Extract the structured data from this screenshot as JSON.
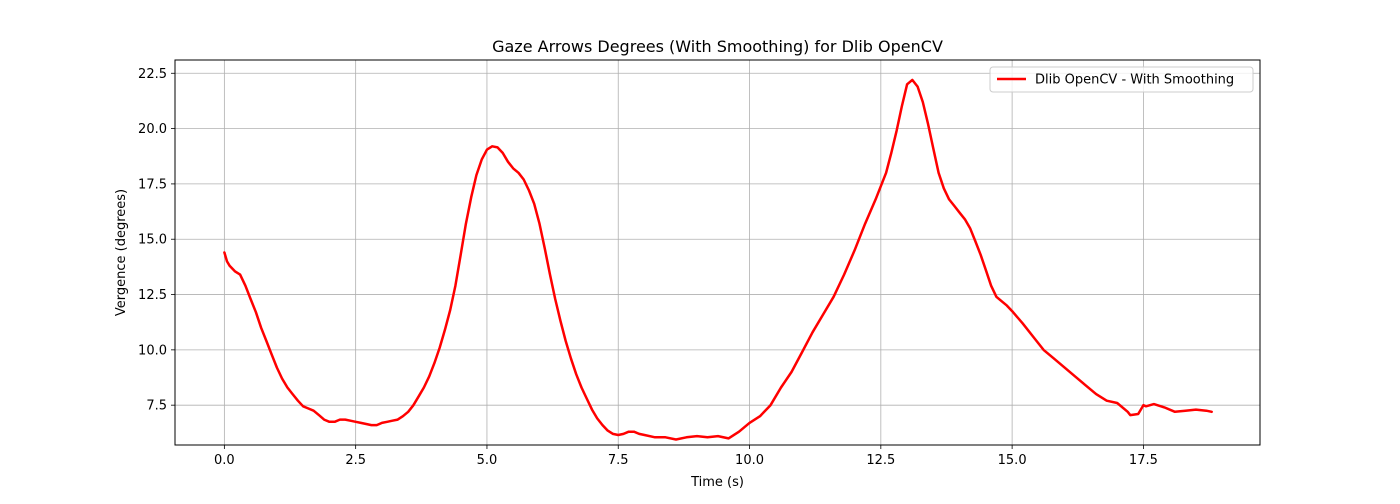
{
  "chart_data": {
    "type": "line",
    "title": "Gaze Arrows Degrees (With Smoothing) for Dlib OpenCV",
    "xlabel": "Time (s)",
    "ylabel": "Vergence (degrees)",
    "xlim": [
      -0.94,
      19.72
    ],
    "ylim": [
      5.7,
      23.1
    ],
    "x_ticks": [
      0.0,
      2.5,
      5.0,
      7.5,
      10.0,
      12.5,
      15.0,
      17.5
    ],
    "x_tick_labels": [
      "0.0",
      "2.5",
      "5.0",
      "7.5",
      "10.0",
      "12.5",
      "15.0",
      "17.5"
    ],
    "y_ticks": [
      7.5,
      10.0,
      12.5,
      15.0,
      17.5,
      20.0,
      22.5
    ],
    "y_tick_labels": [
      "7.5",
      "10.0",
      "12.5",
      "15.0",
      "17.5",
      "20.0",
      "22.5"
    ],
    "grid": true,
    "legend_position": "top-right",
    "series": [
      {
        "name": "Dlib OpenCV - With Smoothing",
        "color": "#ff0000",
        "x": [
          0.0,
          0.05,
          0.1,
          0.2,
          0.3,
          0.4,
          0.5,
          0.6,
          0.7,
          0.8,
          0.9,
          1.0,
          1.1,
          1.2,
          1.3,
          1.4,
          1.5,
          1.6,
          1.7,
          1.8,
          1.9,
          2.0,
          2.1,
          2.2,
          2.3,
          2.4,
          2.5,
          2.6,
          2.7,
          2.8,
          2.9,
          3.0,
          3.1,
          3.2,
          3.3,
          3.4,
          3.5,
          3.6,
          3.7,
          3.8,
          3.9,
          4.0,
          4.1,
          4.2,
          4.3,
          4.4,
          4.5,
          4.6,
          4.7,
          4.8,
          4.9,
          5.0,
          5.1,
          5.2,
          5.3,
          5.4,
          5.5,
          5.6,
          5.7,
          5.8,
          5.9,
          6.0,
          6.1,
          6.2,
          6.3,
          6.4,
          6.5,
          6.6,
          6.7,
          6.8,
          6.9,
          7.0,
          7.1,
          7.2,
          7.3,
          7.4,
          7.5,
          7.6,
          7.7,
          7.8,
          7.9,
          8.0,
          8.2,
          8.4,
          8.6,
          8.8,
          9.0,
          9.2,
          9.4,
          9.6,
          9.8,
          10.0,
          10.2,
          10.4,
          10.6,
          10.8,
          11.0,
          11.2,
          11.4,
          11.6,
          11.8,
          12.0,
          12.2,
          12.4,
          12.6,
          12.7,
          12.8,
          12.9,
          13.0,
          13.1,
          13.2,
          13.3,
          13.4,
          13.5,
          13.6,
          13.7,
          13.8,
          13.9,
          14.0,
          14.1,
          14.2,
          14.3,
          14.4,
          14.5,
          14.6,
          14.7,
          14.8,
          14.9,
          15.0,
          15.2,
          15.4,
          15.6,
          15.8,
          16.0,
          16.2,
          16.4,
          16.6,
          16.8,
          17.0,
          17.2,
          17.25,
          17.4,
          17.5,
          17.55,
          17.7,
          17.9,
          18.1,
          18.3,
          18.5,
          18.7,
          18.8
        ],
        "y": [
          14.4,
          14.0,
          13.8,
          13.55,
          13.4,
          12.9,
          12.3,
          11.7,
          11.0,
          10.4,
          9.8,
          9.2,
          8.7,
          8.3,
          8.0,
          7.7,
          7.45,
          7.35,
          7.25,
          7.05,
          6.85,
          6.75,
          6.75,
          6.85,
          6.85,
          6.8,
          6.75,
          6.7,
          6.65,
          6.6,
          6.6,
          6.7,
          6.75,
          6.8,
          6.85,
          7.0,
          7.2,
          7.5,
          7.9,
          8.3,
          8.8,
          9.4,
          10.1,
          10.9,
          11.8,
          12.9,
          14.3,
          15.7,
          16.9,
          17.9,
          18.6,
          19.05,
          19.2,
          19.15,
          18.9,
          18.5,
          18.2,
          18.0,
          17.7,
          17.2,
          16.6,
          15.7,
          14.6,
          13.4,
          12.3,
          11.3,
          10.4,
          9.6,
          8.9,
          8.3,
          7.8,
          7.3,
          6.9,
          6.6,
          6.35,
          6.2,
          6.15,
          6.2,
          6.3,
          6.3,
          6.2,
          6.15,
          6.05,
          6.05,
          5.95,
          6.05,
          6.1,
          6.05,
          6.1,
          6.0,
          6.3,
          6.7,
          7.0,
          7.5,
          8.3,
          9.0,
          9.9,
          10.8,
          11.6,
          12.4,
          13.4,
          14.5,
          15.7,
          16.8,
          18.0,
          18.9,
          19.9,
          21.0,
          22.0,
          22.2,
          21.9,
          21.2,
          20.2,
          19.1,
          18.0,
          17.3,
          16.8,
          16.5,
          16.2,
          15.9,
          15.5,
          14.9,
          14.3,
          13.6,
          12.9,
          12.4,
          12.2,
          12.0,
          11.75,
          11.2,
          10.6,
          10.0,
          9.6,
          9.2,
          8.8,
          8.4,
          8.0,
          7.7,
          7.6,
          7.2,
          7.05,
          7.1,
          7.5,
          7.45,
          7.55,
          7.4,
          7.2,
          7.25,
          7.3,
          7.25,
          7.2
        ]
      }
    ]
  }
}
